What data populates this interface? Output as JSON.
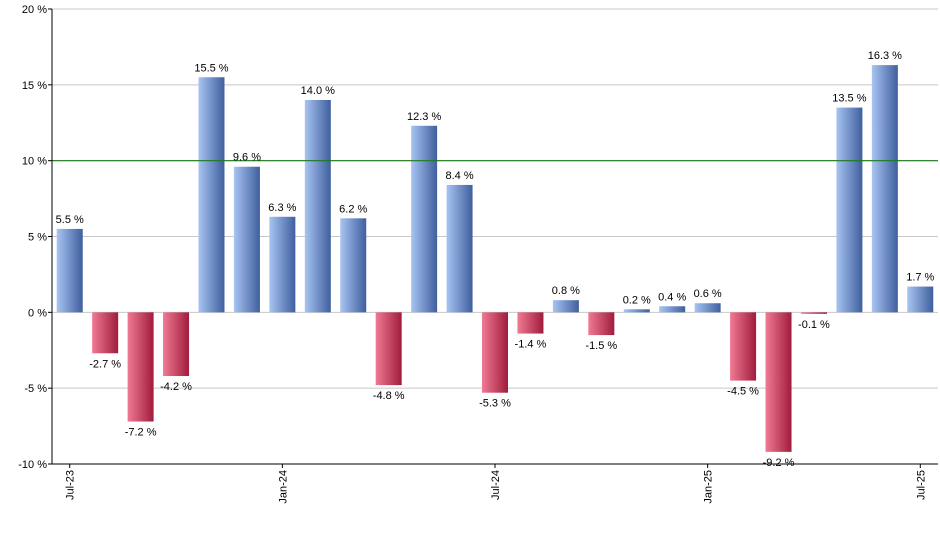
{
  "chart_data": {
    "type": "bar",
    "categories": [
      "2023-07",
      "2023-08",
      "2023-09",
      "2023-10",
      "2023-11",
      "2023-12",
      "2024-01",
      "2024-02",
      "2024-03",
      "2024-04",
      "2024-05",
      "2024-06",
      "2024-07",
      "2024-08",
      "2024-09",
      "2024-10",
      "2024-11",
      "2024-12",
      "2025-01",
      "2025-02",
      "2025-03",
      "2025-04",
      "2025-05",
      "2025-06",
      "2025-07"
    ],
    "values": [
      5.5,
      -2.7,
      -7.2,
      -4.2,
      15.5,
      9.6,
      6.3,
      14.0,
      6.2,
      -4.8,
      12.3,
      8.4,
      -5.3,
      -1.4,
      0.8,
      -1.5,
      0.2,
      0.4,
      0.6,
      -4.5,
      -9.2,
      -0.1,
      13.5,
      16.3,
      1.7
    ],
    "value_labels": [
      "5.5 %",
      "-2.7 %",
      "-7.2 %",
      "-4.2 %",
      "15.5 %",
      "9.6 %",
      "6.3 %",
      "14.0 %",
      "6.2 %",
      "-4.8 %",
      "12.3 %",
      "8.4 %",
      "-5.3 %",
      "-1.4 %",
      "0.8 %",
      "-1.5 %",
      "0.2 %",
      "0.4 %",
      "0.6 %",
      "-4.5 %",
      "-9.2 %",
      "-0.1 %",
      "13.5 %",
      "16.3 %",
      "1.7 %"
    ],
    "ylim": [
      -10,
      20
    ],
    "yticks": [
      20,
      15,
      10,
      5,
      0,
      -5,
      -10
    ],
    "ytick_labels": [
      "20 %",
      "15 %",
      "10 %",
      "5 %",
      "0 %",
      "-5 %",
      "-10 %"
    ],
    "xticks": [
      {
        "label": "Jul-23",
        "index": 0
      },
      {
        "label": "Jan-24",
        "index": 6
      },
      {
        "label": "Jul-24",
        "index": 12
      },
      {
        "label": "Jan-25",
        "index": 18
      },
      {
        "label": "Jul-25",
        "index": 24
      }
    ],
    "reference_line": 10,
    "grid": true,
    "colors": {
      "positive_light": "#a8c4f2",
      "positive_dark": "#3f5f9e",
      "negative_light": "#f07a93",
      "negative_dark": "#a01c3c",
      "reference": "#1a7a1a",
      "grid": "#c8c8c8"
    }
  }
}
